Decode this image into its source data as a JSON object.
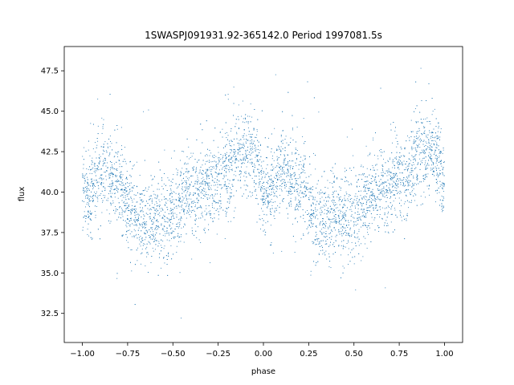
{
  "chart_data": {
    "type": "scatter",
    "title": "1SWASPJ091931.92-365142.0 Period 1997081.5s",
    "xlabel": "phase",
    "ylabel": "flux",
    "xlim": [
      -1.1,
      1.1
    ],
    "ylim": [
      30.7,
      49.0
    ],
    "x_ticks": [
      -1.0,
      -0.75,
      -0.5,
      -0.25,
      0.0,
      0.25,
      0.5,
      0.75,
      1.0
    ],
    "x_tick_labels": [
      "−1.00",
      "−0.75",
      "−0.50",
      "−0.25",
      "0.00",
      "0.25",
      "0.50",
      "0.75",
      "1.00"
    ],
    "y_ticks": [
      32.5,
      35.0,
      37.5,
      40.0,
      42.5,
      45.0,
      47.5
    ],
    "y_tick_labels": [
      "32.5",
      "35.0",
      "37.5",
      "40.0",
      "42.5",
      "45.0",
      "47.5"
    ],
    "grid": false,
    "marker_color": "#1f77b4",
    "series": [
      {
        "trend": [
          [
            -1.0,
            40.2
          ],
          [
            -0.95,
            40.0
          ],
          [
            -0.9,
            41.4
          ],
          [
            -0.85,
            40.9
          ],
          [
            -0.8,
            40.4
          ],
          [
            -0.75,
            39.5
          ],
          [
            -0.7,
            38.2
          ],
          [
            -0.65,
            38.2
          ],
          [
            -0.6,
            38.6
          ],
          [
            -0.55,
            38.4
          ],
          [
            -0.5,
            38.6
          ],
          [
            -0.45,
            39.4
          ],
          [
            -0.4,
            40.0
          ],
          [
            -0.35,
            40.2
          ],
          [
            -0.3,
            40.3
          ],
          [
            -0.25,
            40.9
          ],
          [
            -0.2,
            41.3
          ],
          [
            -0.15,
            42.1
          ],
          [
            -0.1,
            42.4
          ],
          [
            -0.05,
            42.4
          ],
          [
            0.0,
            40.2
          ],
          [
            0.05,
            40.0
          ],
          [
            0.1,
            41.4
          ],
          [
            0.15,
            40.9
          ],
          [
            0.2,
            40.4
          ],
          [
            0.25,
            39.5
          ],
          [
            0.3,
            38.2
          ],
          [
            0.35,
            38.2
          ],
          [
            0.4,
            38.6
          ],
          [
            0.45,
            38.4
          ],
          [
            0.5,
            38.6
          ],
          [
            0.55,
            39.4
          ],
          [
            0.6,
            40.0
          ],
          [
            0.65,
            40.2
          ],
          [
            0.7,
            40.3
          ],
          [
            0.75,
            40.9
          ],
          [
            0.8,
            41.3
          ],
          [
            0.85,
            42.1
          ],
          [
            0.9,
            42.4
          ],
          [
            0.95,
            42.4
          ],
          [
            1.0,
            40.2
          ]
        ],
        "point_count": 6000,
        "scatter_sd": 1.3
      }
    ]
  }
}
